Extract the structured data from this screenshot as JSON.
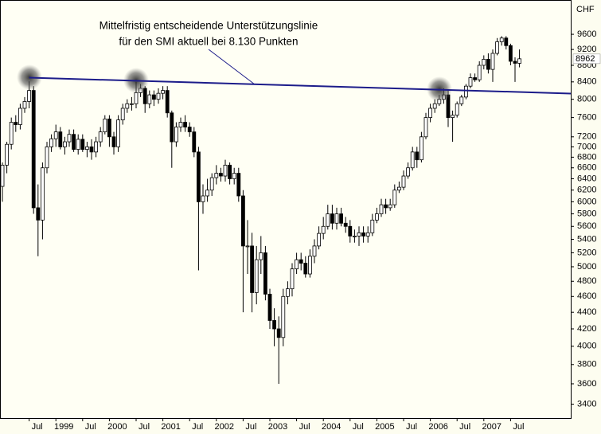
{
  "chart_data": {
    "type": "candlestick",
    "y_unit": "CHF",
    "annotation": [
      "Mittelfristig entscheidende Unterstützungslinie",
      "für den SMI aktuell bei 8.130 Punkten"
    ],
    "last_price": 8962,
    "log_scale": true,
    "ylim": [
      3270,
      10570
    ],
    "yticks": [
      9600,
      9200,
      8800,
      8400,
      8000,
      7600,
      7200,
      7000,
      6800,
      6600,
      6400,
      6200,
      6000,
      5800,
      5600,
      5400,
      5200,
      5000,
      4800,
      4600,
      4400,
      4200,
      4000,
      3800,
      3600,
      3400
    ],
    "trendline": {
      "color": "#1c1c8a",
      "values": [
        8500,
        8130
      ]
    },
    "up_color": "#ffffff",
    "down_color": "#000000",
    "categories": [
      null,
      null,
      null,
      null,
      null,
      null,
      "Jul",
      null,
      null,
      null,
      null,
      null,
      "1999",
      null,
      null,
      null,
      null,
      null,
      "Jul",
      null,
      null,
      null,
      null,
      null,
      "2000",
      null,
      null,
      null,
      null,
      null,
      "Jul",
      null,
      null,
      null,
      null,
      null,
      "2001",
      null,
      null,
      null,
      null,
      null,
      "Jul",
      null,
      null,
      null,
      null,
      null,
      "2002",
      null,
      null,
      null,
      null,
      null,
      "Jul",
      null,
      null,
      null,
      null,
      null,
      "2003",
      null,
      null,
      null,
      null,
      null,
      "Jul",
      null,
      null,
      null,
      null,
      null,
      "2004",
      null,
      null,
      null,
      null,
      null,
      "Jul",
      null,
      null,
      null,
      null,
      null,
      "2005",
      null,
      null,
      null,
      null,
      null,
      "Jul",
      null,
      null,
      null,
      null,
      null,
      "2006",
      null,
      null,
      null,
      null,
      null,
      "Jul",
      null,
      null,
      null,
      null,
      null,
      "2007",
      null,
      null,
      null,
      null,
      null,
      "Jul",
      null,
      null
    ],
    "open": [
      6265,
      6650,
      7050,
      7500,
      7450,
      7800,
      7950,
      8200,
      5900,
      5700,
      6600,
      7000,
      7160,
      7300,
      7000,
      7100,
      7250,
      6950,
      7150,
      6950,
      7000,
      6900,
      7100,
      7300,
      7570,
      7200,
      7000,
      7550,
      7800,
      7900,
      7900,
      8150,
      8250,
      7900,
      8100,
      8000,
      8135,
      8200,
      7700,
      7100,
      7400,
      7500,
      7400,
      7300,
      6900,
      6000,
      6100,
      6200,
      6420,
      6500,
      6450,
      6650,
      6400,
      6500,
      6100,
      5300,
      5300,
      4650,
      5100,
      5200,
      4630,
      4300,
      4200,
      4100,
      4600,
      4700,
      4970,
      5100,
      5050,
      4900,
      5150,
      5300,
      5490,
      5600,
      5800,
      5650,
      5800,
      5650,
      5600,
      5450,
      5450,
      5500,
      5450,
      5500,
      5700,
      5800,
      5950,
      5900,
      5950,
      6200,
      6250,
      6450,
      6600,
      6900,
      6750,
      7200,
      7600,
      7800,
      7900,
      8000,
      8100,
      7600,
      7650,
      7900,
      8050,
      8300,
      8500,
      8450,
      8800,
      8950,
      8700,
      9100,
      9400,
      9500,
      9300,
      8900,
      8850
    ],
    "high": [
      6700,
      7100,
      7600,
      7650,
      7900,
      8050,
      8412,
      8300,
      6300,
      6700,
      7100,
      7250,
      7450,
      7400,
      7200,
      7350,
      7350,
      7250,
      7250,
      7100,
      7150,
      7200,
      7400,
      7650,
      7650,
      7300,
      7650,
      7900,
      8000,
      8050,
      8400,
      8350,
      8300,
      8200,
      8200,
      8250,
      8300,
      8300,
      7750,
      7500,
      7600,
      7650,
      7500,
      7400,
      7000,
      6300,
      6400,
      6500,
      6650,
      6600,
      6750,
      6700,
      6600,
      6600,
      6200,
      5700,
      5500,
      5300,
      5450,
      5300,
      4700,
      4450,
      4350,
      4700,
      4800,
      5050,
      5200,
      5200,
      5150,
      5250,
      5400,
      5600,
      5750,
      5950,
      5950,
      5900,
      5900,
      5750,
      5700,
      5550,
      5600,
      5600,
      5600,
      5800,
      5900,
      6050,
      6050,
      6050,
      6300,
      6350,
      6550,
      6700,
      7000,
      7000,
      7300,
      7700,
      7900,
      8000,
      8100,
      8250,
      8200,
      7750,
      7950,
      8100,
      8350,
      8600,
      8600,
      8900,
      9050,
      9100,
      9200,
      9500,
      9550,
      9550,
      9350,
      9000,
      9200
    ],
    "low": [
      6000,
      6500,
      6950,
      7300,
      7350,
      7700,
      7800,
      5800,
      5150,
      5400,
      6500,
      6900,
      7000,
      6950,
      6850,
      7000,
      6900,
      6850,
      6900,
      6800,
      6750,
      6800,
      7000,
      7250,
      7000,
      6850,
      6900,
      7450,
      7700,
      7750,
      7800,
      8050,
      7700,
      7800,
      7850,
      7900,
      8000,
      7600,
      6600,
      7000,
      7300,
      7300,
      7200,
      6800,
      4950,
      5800,
      6000,
      6100,
      6300,
      6350,
      6350,
      6300,
      6300,
      6000,
      4400,
      4900,
      4400,
      4500,
      4900,
      4550,
      4200,
      4000,
      3600,
      4000,
      4500,
      4600,
      4900,
      4950,
      4850,
      4850,
      5050,
      5250,
      5400,
      5550,
      5550,
      5550,
      5600,
      5500,
      5350,
      5350,
      5300,
      5350,
      5350,
      5450,
      5650,
      5750,
      5800,
      5850,
      5900,
      6150,
      6200,
      6400,
      6550,
      6600,
      6700,
      7150,
      7500,
      7700,
      7850,
      7900,
      7400,
      7100,
      7600,
      7850,
      8000,
      8250,
      8400,
      8400,
      8700,
      8600,
      8400,
      9050,
      9300,
      9200,
      8800,
      8400,
      8750
    ],
    "close": [
      6650,
      7050,
      7500,
      7450,
      7800,
      7950,
      8200,
      5900,
      5700,
      6600,
      7000,
      7160,
      7300,
      7000,
      7100,
      7250,
      6950,
      7150,
      6950,
      7000,
      6900,
      7100,
      7300,
      7570,
      7200,
      7000,
      7550,
      7800,
      7900,
      7900,
      8150,
      8250,
      7900,
      8100,
      8000,
      8135,
      8200,
      7700,
      7100,
      7400,
      7500,
      7400,
      7300,
      6900,
      6000,
      6100,
      6200,
      6420,
      6500,
      6450,
      6650,
      6400,
      6500,
      6100,
      5300,
      5300,
      4650,
      5100,
      5200,
      4630,
      4300,
      4200,
      4100,
      4600,
      4700,
      4970,
      5100,
      5050,
      4900,
      5150,
      5300,
      5490,
      5600,
      5800,
      5650,
      5800,
      5650,
      5600,
      5450,
      5450,
      5500,
      5450,
      5500,
      5700,
      5800,
      5950,
      5900,
      5950,
      6200,
      6250,
      6450,
      6600,
      6900,
      6750,
      7200,
      7600,
      7800,
      7900,
      8000,
      8100,
      7600,
      7650,
      7900,
      8050,
      8300,
      8500,
      8450,
      8800,
      8950,
      8700,
      9100,
      9400,
      9500,
      9300,
      8900,
      8850,
      8962
    ]
  }
}
